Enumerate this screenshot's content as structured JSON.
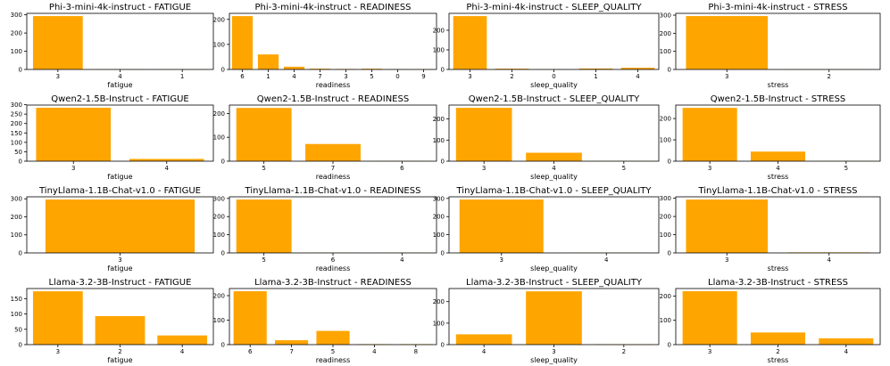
{
  "colors": {
    "bar": "#FFA500",
    "axis": "#000000",
    "background": "#ffffff"
  },
  "chart_data": [
    {
      "type": "bar",
      "title": "Phi-3-mini-4k-instruct - FATIGUE",
      "xlabel": "fatigue",
      "ylabel": "",
      "categories": [
        "3",
        "4",
        "1"
      ],
      "values": [
        293,
        1,
        1
      ],
      "ylim": [
        0,
        308
      ],
      "yticks": [
        0,
        100,
        200,
        300
      ]
    },
    {
      "type": "bar",
      "title": "Phi-3-mini-4k-instruct - READINESS",
      "xlabel": "readiness",
      "ylabel": "",
      "categories": [
        "6",
        "1",
        "4",
        "7",
        "3",
        "5",
        "0",
        "9"
      ],
      "values": [
        213,
        60,
        11,
        3,
        2,
        3,
        1,
        1
      ],
      "ylim": [
        0,
        224
      ],
      "yticks": [
        0,
        100,
        200
      ]
    },
    {
      "type": "bar",
      "title": "Phi-3-mini-4k-instruct - SLEEP_QUALITY",
      "xlabel": "sleep_quality",
      "ylabel": "",
      "categories": [
        "3",
        "2",
        "0",
        "1",
        "4"
      ],
      "values": [
        272,
        4,
        1,
        5,
        9
      ],
      "ylim": [
        0,
        286
      ],
      "yticks": [
        0,
        100,
        200
      ]
    },
    {
      "type": "bar",
      "title": "Phi-3-mini-4k-instruct - STRESS",
      "xlabel": "stress",
      "ylabel": "",
      "categories": [
        "3",
        "2"
      ],
      "values": [
        295,
        1
      ],
      "ylim": [
        0,
        310
      ],
      "yticks": [
        0,
        100,
        200,
        300
      ]
    },
    {
      "type": "bar",
      "title": "Qwen2-1.5B-Instruct - FATIGUE",
      "xlabel": "fatigue",
      "ylabel": "",
      "categories": [
        "3",
        "4"
      ],
      "values": [
        284,
        12
      ],
      "ylim": [
        0,
        298
      ],
      "yticks": [
        0,
        50,
        100,
        150,
        200,
        250,
        300
      ]
    },
    {
      "type": "bar",
      "title": "Qwen2-1.5B-Instruct - READINESS",
      "xlabel": "readiness",
      "ylabel": "",
      "categories": [
        "5",
        "7",
        "6"
      ],
      "values": [
        223,
        72,
        1
      ],
      "ylim": [
        0,
        235
      ],
      "yticks": [
        0,
        100,
        200
      ]
    },
    {
      "type": "bar",
      "title": "Qwen2-1.5B-Instruct - SLEEP_QUALITY",
      "xlabel": "sleep_quality",
      "ylabel": "",
      "categories": [
        "3",
        "4",
        "5"
      ],
      "values": [
        253,
        40,
        1
      ],
      "ylim": [
        0,
        266
      ],
      "yticks": [
        0,
        100,
        200
      ]
    },
    {
      "type": "bar",
      "title": "Qwen2-1.5B-Instruct - STRESS",
      "xlabel": "stress",
      "ylabel": "",
      "categories": [
        "3",
        "4",
        "5"
      ],
      "values": [
        250,
        45,
        1
      ],
      "ylim": [
        0,
        263
      ],
      "yticks": [
        0,
        100,
        200
      ]
    },
    {
      "type": "bar",
      "title": "TinyLlama-1.1B-Chat-v1.0 - FATIGUE",
      "xlabel": "fatigue",
      "ylabel": "",
      "categories": [
        "3"
      ],
      "values": [
        296
      ],
      "ylim": [
        0,
        311
      ],
      "yticks": [
        0,
        100,
        200,
        300
      ]
    },
    {
      "type": "bar",
      "title": "TinyLlama-1.1B-Chat-v1.0 - READINESS",
      "xlabel": "readiness",
      "ylabel": "",
      "categories": [
        "5",
        "6",
        "4"
      ],
      "values": [
        294,
        1,
        1
      ],
      "ylim": [
        0,
        309
      ],
      "yticks": [
        0,
        100,
        200,
        300
      ]
    },
    {
      "type": "bar",
      "title": "TinyLlama-1.1B-Chat-v1.0 - SLEEP_QUALITY",
      "xlabel": "sleep_quality",
      "ylabel": "",
      "categories": [
        "3",
        "4"
      ],
      "values": [
        294,
        1
      ],
      "ylim": [
        0,
        309
      ],
      "yticks": [
        0,
        100,
        200,
        300
      ]
    },
    {
      "type": "bar",
      "title": "TinyLlama-1.1B-Chat-v1.0 - STRESS",
      "xlabel": "stress",
      "ylabel": "",
      "categories": [
        "3",
        "4"
      ],
      "values": [
        293,
        3
      ],
      "ylim": [
        0,
        308
      ],
      "yticks": [
        0,
        100,
        200,
        300
      ]
    },
    {
      "type": "bar",
      "title": "Llama-3.2-3B-Instruct - FATIGUE",
      "xlabel": "fatigue",
      "ylabel": "",
      "categories": [
        "3",
        "2",
        "4"
      ],
      "values": [
        174,
        93,
        30
      ],
      "ylim": [
        0,
        183
      ],
      "yticks": [
        0,
        50,
        100,
        150
      ]
    },
    {
      "type": "bar",
      "title": "Llama-3.2-3B-Instruct - READINESS",
      "xlabel": "readiness",
      "ylabel": "",
      "categories": [
        "6",
        "7",
        "5",
        "4",
        "8"
      ],
      "values": [
        218,
        18,
        56,
        2,
        2
      ],
      "ylim": [
        0,
        229
      ],
      "yticks": [
        0,
        100,
        200
      ]
    },
    {
      "type": "bar",
      "title": "Llama-3.2-3B-Instruct - SLEEP_QUALITY",
      "xlabel": "sleep_quality",
      "ylabel": "",
      "categories": [
        "4",
        "3",
        "2"
      ],
      "values": [
        48,
        248,
        2
      ],
      "ylim": [
        0,
        261
      ],
      "yticks": [
        0,
        100,
        200
      ]
    },
    {
      "type": "bar",
      "title": "Llama-3.2-3B-Instruct - STRESS",
      "xlabel": "stress",
      "ylabel": "",
      "categories": [
        "3",
        "2",
        "4"
      ],
      "values": [
        220,
        50,
        26
      ],
      "ylim": [
        0,
        231
      ],
      "yticks": [
        0,
        100,
        200
      ]
    }
  ]
}
